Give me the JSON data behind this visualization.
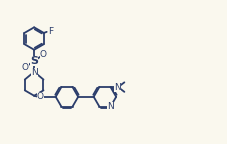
{
  "background_color": "#faf8ee",
  "line_color": "#2b3d6b",
  "text_color": "#2b3d6b",
  "line_width": 1.3,
  "font_size": 6.5,
  "fig_width": 2.28,
  "fig_height": 1.44,
  "dpi": 100,
  "xlim": [
    0,
    10.5
  ],
  "ylim": [
    0,
    6.6
  ]
}
